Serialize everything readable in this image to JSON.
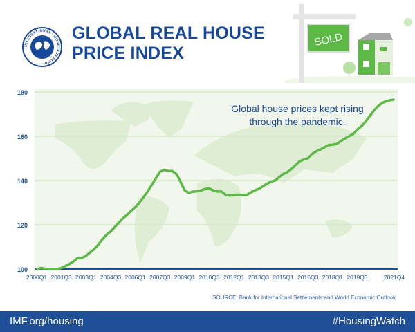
{
  "header": {
    "title_line1": "GLOBAL REAL HOUSE",
    "title_line2": "PRICE INDEX",
    "logo_text": "INTERNATIONAL MONETARY FUND",
    "sign_text": "SOLD"
  },
  "colors": {
    "brand_blue": "#17489a",
    "line_green": "#5cb946",
    "plot_bg": "#f1f7ec",
    "map_green": "#dcebd2",
    "footer_blue": "#1f4f96"
  },
  "chart_data": {
    "type": "line",
    "title": "",
    "xlabel": "",
    "ylabel": "",
    "ylim": [
      100,
      180
    ],
    "yticks": [
      100,
      120,
      140,
      160,
      180
    ],
    "grid": true,
    "xtick_labels": [
      "2000Q1",
      "2001Q3",
      "2003Q1",
      "2004Q3",
      "2006Q1",
      "2007Q3",
      "2009Q1",
      "2010Q3",
      "2012Q1",
      "2013Q3",
      "2015Q1",
      "2016Q3",
      "2018Q1",
      "2019Q3",
      "2021Q4"
    ],
    "x": [
      "2000Q1",
      "2000Q2",
      "2000Q3",
      "2000Q4",
      "2001Q1",
      "2001Q2",
      "2001Q3",
      "2001Q4",
      "2002Q1",
      "2002Q2",
      "2002Q3",
      "2002Q4",
      "2003Q1",
      "2003Q2",
      "2003Q3",
      "2003Q4",
      "2004Q1",
      "2004Q2",
      "2004Q3",
      "2004Q4",
      "2005Q1",
      "2005Q2",
      "2005Q3",
      "2005Q4",
      "2006Q1",
      "2006Q2",
      "2006Q3",
      "2006Q4",
      "2007Q1",
      "2007Q2",
      "2007Q3",
      "2007Q4",
      "2008Q1",
      "2008Q2",
      "2008Q3",
      "2008Q4",
      "2009Q1",
      "2009Q2",
      "2009Q3",
      "2009Q4",
      "2010Q1",
      "2010Q2",
      "2010Q3",
      "2010Q4",
      "2011Q1",
      "2011Q2",
      "2011Q3",
      "2011Q4",
      "2012Q1",
      "2012Q2",
      "2012Q3",
      "2012Q4",
      "2013Q1",
      "2013Q2",
      "2013Q3",
      "2013Q4",
      "2014Q1",
      "2014Q2",
      "2014Q3",
      "2014Q4",
      "2015Q1",
      "2015Q2",
      "2015Q3",
      "2015Q4",
      "2016Q1",
      "2016Q2",
      "2016Q3",
      "2016Q4",
      "2017Q1",
      "2017Q2",
      "2017Q3",
      "2017Q4",
      "2018Q1",
      "2018Q2",
      "2018Q3",
      "2018Q4",
      "2019Q1",
      "2019Q2",
      "2019Q3",
      "2019Q4",
      "2020Q1",
      "2020Q2",
      "2020Q3",
      "2020Q4",
      "2021Q1",
      "2021Q2",
      "2021Q3",
      "2021Q4"
    ],
    "series": [
      {
        "values": [
          99.7,
          100.5,
          100.2,
          99.9,
          100.1,
          100,
          100.5,
          101.3,
          102.3,
          103.5,
          105,
          105,
          106,
          107.5,
          109,
          111,
          113.5,
          115.5,
          117,
          119,
          121,
          123,
          124.5,
          126.3,
          128,
          130,
          132.5,
          135,
          138,
          141,
          144,
          144.8,
          144.3,
          144.3,
          143,
          139.5,
          135.6,
          134.4,
          135,
          135.1,
          135.5,
          136.2,
          136.4,
          135.5,
          135,
          135,
          133.5,
          133.2,
          133.5,
          133.6,
          133.5,
          133.4,
          134.5,
          135.5,
          136.2,
          137.3,
          138.5,
          139.5,
          140,
          141.5,
          143,
          143.8,
          145.2,
          147,
          148.7,
          149.5,
          150,
          152,
          153.2,
          154,
          155,
          156,
          156.2,
          156.5,
          157.8,
          159,
          160,
          161,
          163,
          164.5,
          166.5,
          169,
          171.5,
          173.5,
          175,
          175.8,
          176.3,
          176.6
        ]
      }
    ],
    "annotation_line1": "Global house prices kept rising",
    "annotation_line2": "through the pandemic."
  },
  "source": "SOURCE: Bank for International Settlements and World Economic Outlook",
  "footer": {
    "left": "IMF.org/housing",
    "right": "#HousingWatch"
  }
}
